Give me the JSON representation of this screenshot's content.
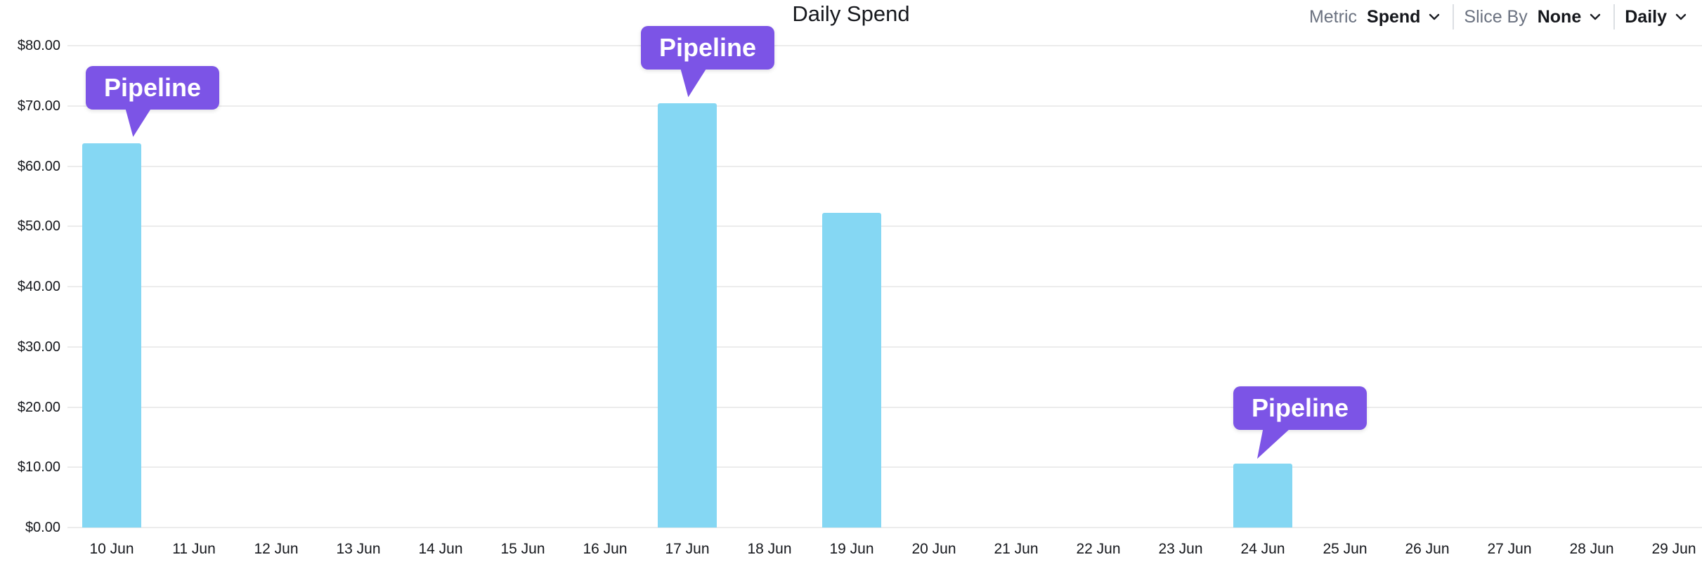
{
  "header": {
    "title": "Daily Spend",
    "controls": {
      "metric_label": "Metric",
      "metric_value": "Spend",
      "slice_by_label": "Slice By",
      "slice_by_value": "None",
      "granularity_value": "Daily"
    }
  },
  "chart_data": {
    "type": "bar",
    "title": "Daily Spend",
    "categories": [
      "10 Jun",
      "11 Jun",
      "12 Jun",
      "13 Jun",
      "14 Jun",
      "15 Jun",
      "16 Jun",
      "17 Jun",
      "18 Jun",
      "19 Jun",
      "20 Jun",
      "21 Jun",
      "22 Jun",
      "23 Jun",
      "24 Jun",
      "25 Jun",
      "26 Jun",
      "27 Jun",
      "28 Jun",
      "29 Jun"
    ],
    "values": [
      63.8,
      0,
      0,
      0,
      0,
      0,
      0,
      70.4,
      0,
      52.3,
      0,
      0,
      0,
      0,
      10.6,
      0,
      0,
      0,
      0,
      0
    ],
    "series_name": "Pipeline",
    "ylim": [
      0,
      80
    ],
    "ytick_step": 10,
    "yticks": [
      "$0.00",
      "$10.00",
      "$20.00",
      "$30.00",
      "$40.00",
      "$50.00",
      "$60.00",
      "$70.00",
      "$80.00"
    ],
    "xlabel": "",
    "ylabel": "",
    "grid": true,
    "legend_position": "none",
    "bar_color": "#85d7f3",
    "annotation_color": "#7c54e6",
    "grid_color": "#ececec",
    "annotations": [
      {
        "label": "Pipeline",
        "category": "10 Jun"
      },
      {
        "label": "Pipeline",
        "category": "17 Jun"
      },
      {
        "label": "Pipeline",
        "category": "24 Jun"
      }
    ]
  }
}
